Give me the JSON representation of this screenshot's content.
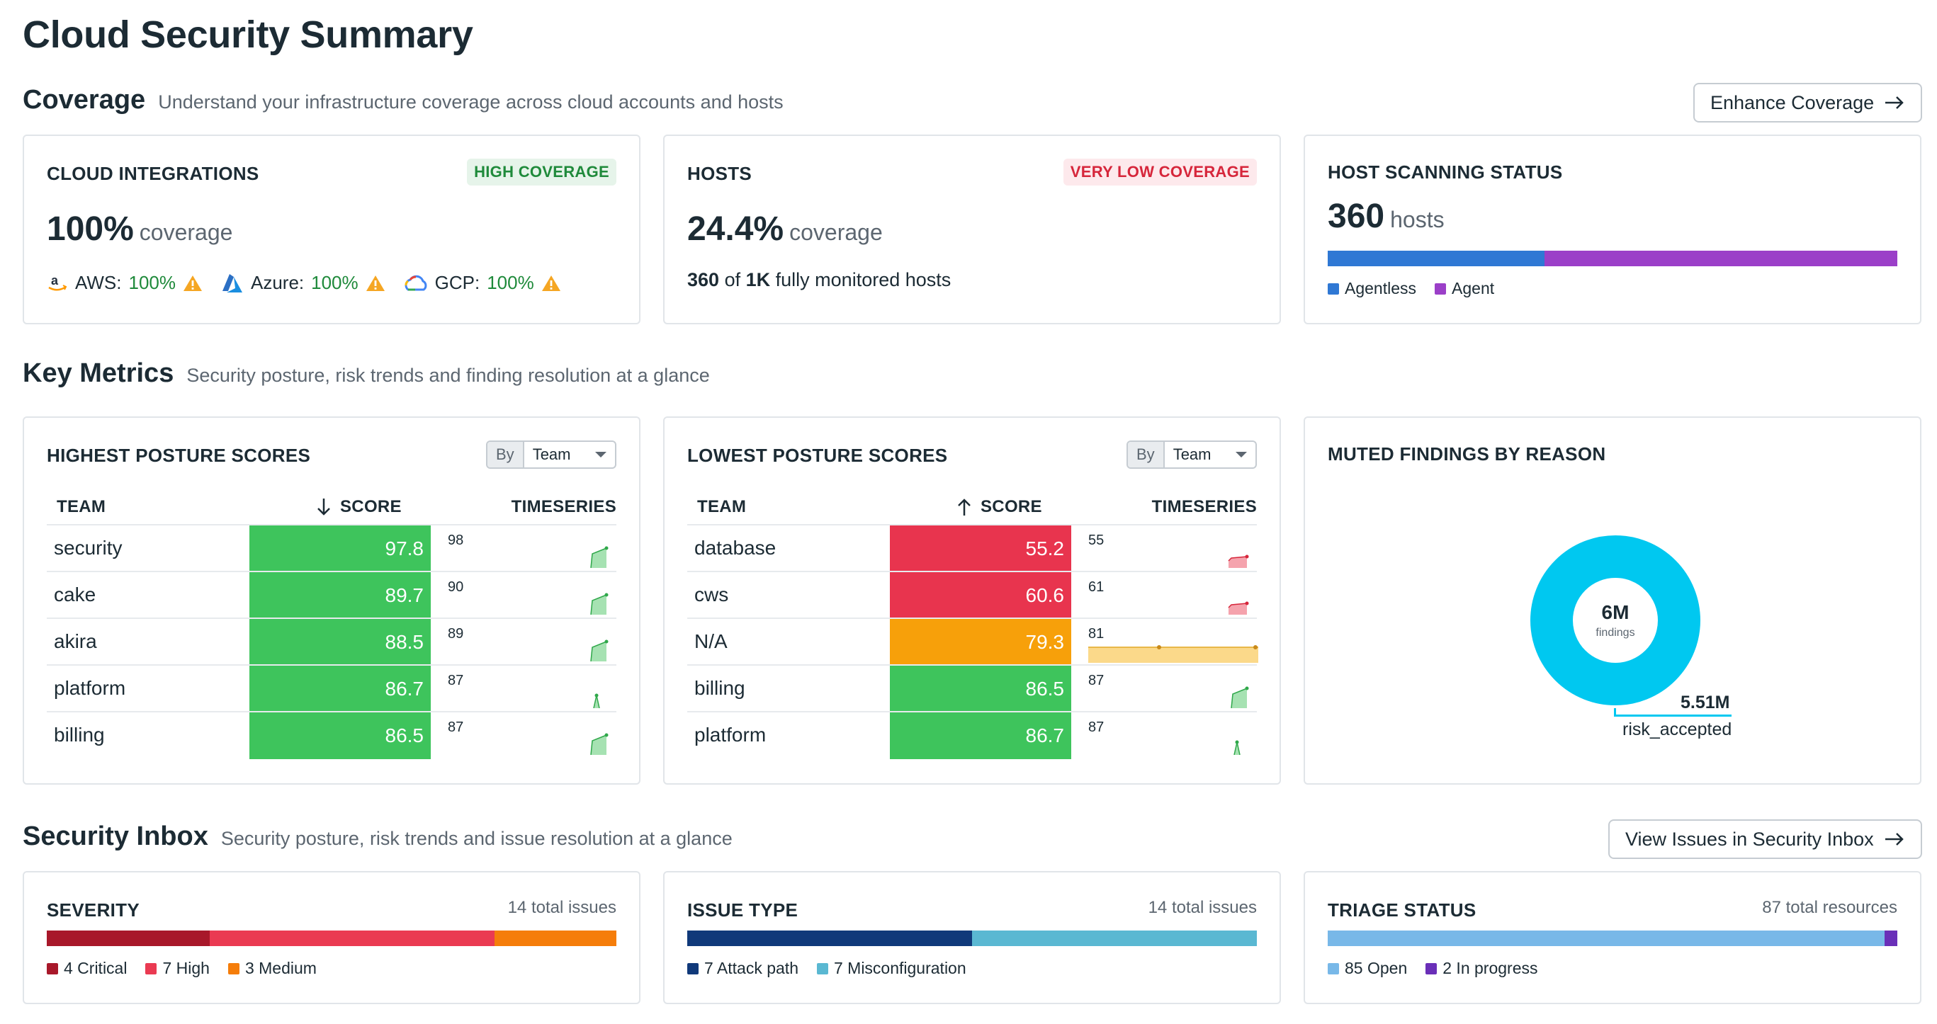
{
  "page": {
    "title": "Cloud Security Summary"
  },
  "coverage": {
    "title": "Coverage",
    "description": "Understand your infrastructure coverage across cloud accounts and hosts",
    "button_label": "Enhance Coverage",
    "cloud_integrations": {
      "title": "CLOUD INTEGRATIONS",
      "badge": "HIGH COVERAGE",
      "value": "100%",
      "unit": "coverage",
      "providers": [
        {
          "name": "AWS:",
          "pct": "100%",
          "icon": "aws-logo-icon"
        },
        {
          "name": "Azure:",
          "pct": "100%",
          "icon": "azure-logo-icon"
        },
        {
          "name": "GCP:",
          "pct": "100%",
          "icon": "gcp-logo-icon"
        }
      ]
    },
    "hosts": {
      "title": "HOSTS",
      "badge": "VERY LOW COVERAGE",
      "value": "24.4%",
      "unit": "coverage",
      "monitored": "360",
      "of_label": "of",
      "total": "1K",
      "suffix": "fully monitored hosts"
    },
    "host_scanning": {
      "title": "HOST SCANNING STATUS",
      "value": "360",
      "unit": "hosts",
      "segments": [
        {
          "label": "Agentless",
          "fraction": 0.38,
          "color": "#2f78d4"
        },
        {
          "label": "Agent",
          "fraction": 0.62,
          "color": "#9b3fc8"
        }
      ]
    }
  },
  "key_metrics": {
    "title": "Key Metrics",
    "description": "Security posture, risk trends and finding resolution at a glance",
    "highest": {
      "title": "HIGHEST POSTURE SCORES",
      "by_label": "By",
      "group_value": "Team",
      "columns": [
        "TEAM",
        "SCORE",
        "TIMESERIES"
      ],
      "rows": [
        {
          "team": "security",
          "score": "97.8",
          "ts": "98",
          "color": "#3ec45c"
        },
        {
          "team": "cake",
          "score": "89.7",
          "ts": "90",
          "color": "#3ec45c"
        },
        {
          "team": "akira",
          "score": "88.5",
          "ts": "89",
          "color": "#3ec45c"
        },
        {
          "team": "platform",
          "score": "86.7",
          "ts": "87",
          "color": "#3ec45c"
        },
        {
          "team": "billing",
          "score": "86.5",
          "ts": "87",
          "color": "#3ec45c"
        }
      ]
    },
    "lowest": {
      "title": "LOWEST POSTURE SCORES",
      "by_label": "By",
      "group_value": "Team",
      "columns": [
        "TEAM",
        "SCORE",
        "TIMESERIES"
      ],
      "rows": [
        {
          "team": "database",
          "score": "55.2",
          "ts": "55",
          "color": "#e8344e"
        },
        {
          "team": "cws",
          "score": "60.6",
          "ts": "61",
          "color": "#e8344e"
        },
        {
          "team": "N/A",
          "score": "79.3",
          "ts": "81",
          "color": "#f7a00a"
        },
        {
          "team": "billing",
          "score": "86.5",
          "ts": "87",
          "color": "#3ec45c"
        },
        {
          "team": "platform",
          "score": "86.7",
          "ts": "87",
          "color": "#3ec45c"
        }
      ]
    },
    "muted": {
      "title": "MUTED FINDINGS BY REASON",
      "center_value": "6M",
      "center_label": "findings",
      "segment_value": "5.51M",
      "segment_label": "risk_accepted",
      "color": "#00c8f0"
    }
  },
  "security_inbox": {
    "title": "Security Inbox",
    "description": "Security posture, risk trends and issue resolution at a glance",
    "button_label": "View Issues in Security Inbox",
    "severity": {
      "title": "SEVERITY",
      "count": "14 total issues",
      "segments": [
        {
          "label": "4 Critical",
          "value": 4,
          "color": "#a8182a"
        },
        {
          "label": "7 High",
          "value": 7,
          "color": "#ea3a52"
        },
        {
          "label": "3 Medium",
          "value": 3,
          "color": "#f57d0a"
        }
      ]
    },
    "issue_type": {
      "title": "ISSUE TYPE",
      "count": "14 total issues",
      "segments": [
        {
          "label": "7 Attack path",
          "value": 7,
          "color": "#10397a"
        },
        {
          "label": "7 Misconfiguration",
          "value": 7,
          "color": "#5ab8d2"
        }
      ]
    },
    "triage": {
      "title": "TRIAGE STATUS",
      "count": "87 total resources",
      "segments": [
        {
          "label": "85 Open",
          "value": 85,
          "color": "#78b8e8"
        },
        {
          "label": "2 In progress",
          "value": 2,
          "color": "#6a2fb8"
        }
      ]
    }
  }
}
